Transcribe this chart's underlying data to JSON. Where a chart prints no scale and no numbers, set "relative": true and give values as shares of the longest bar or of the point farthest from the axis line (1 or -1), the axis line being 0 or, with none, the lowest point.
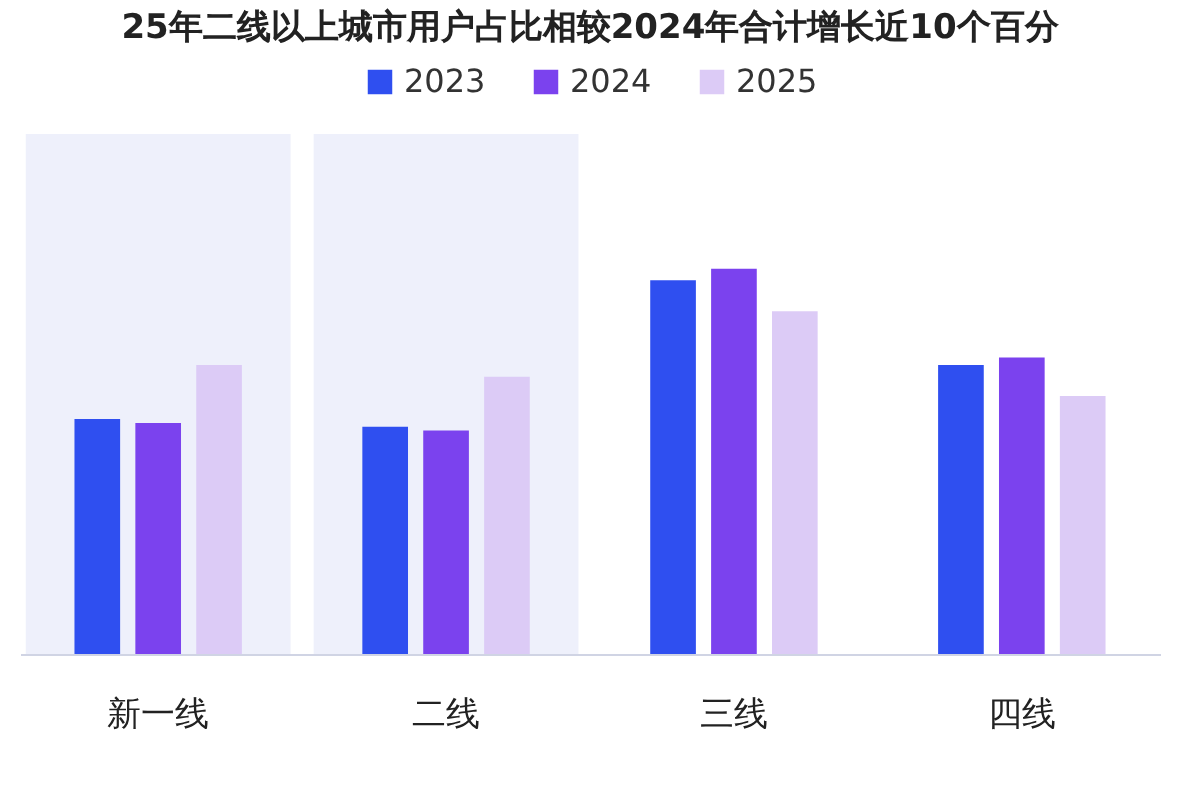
{
  "chart_data": {
    "type": "bar",
    "title": "25年二线以上城市用户占比相较2024年合计增长近10个百分",
    "relative": true,
    "legend": "top",
    "categories": [
      "新一线",
      "二线",
      "三线",
      "四线"
    ],
    "series": [
      {
        "name": "2023",
        "color": "#2f4ff0",
        "values": [
          0.61,
          0.59,
          0.97,
          0.75
        ]
      },
      {
        "name": "2024",
        "color": "#7b42ee",
        "values": [
          0.6,
          0.58,
          1,
          0.77
        ]
      },
      {
        "name": "2025",
        "color": "#dccbf6",
        "values": [
          0.75,
          0.72,
          0.89,
          0.67
        ]
      }
    ],
    "bands": [
      {
        "axis": "x",
        "from": "新一线",
        "to": "新一线",
        "color": "#eef0fb"
      },
      {
        "axis": "x",
        "from": "二线",
        "to": "二线",
        "color": "#eef0fb"
      }
    ]
  }
}
